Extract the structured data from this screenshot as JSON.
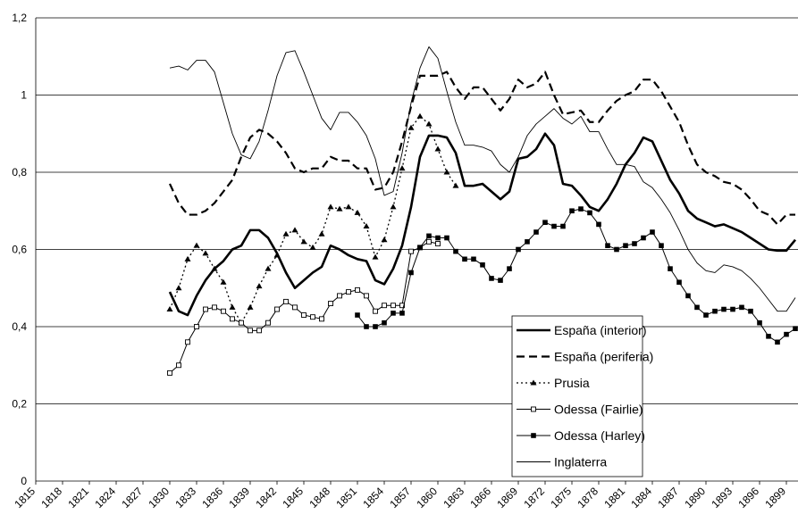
{
  "chart_data": {
    "type": "line",
    "x": [
      1830,
      1831,
      1832,
      1833,
      1834,
      1835,
      1836,
      1837,
      1838,
      1839,
      1840,
      1841,
      1842,
      1843,
      1844,
      1845,
      1846,
      1847,
      1848,
      1849,
      1850,
      1851,
      1852,
      1853,
      1854,
      1855,
      1856,
      1857,
      1858,
      1859,
      1860,
      1861,
      1862,
      1863,
      1864,
      1865,
      1866,
      1867,
      1868,
      1869,
      1870,
      1871,
      1872,
      1873,
      1874,
      1875,
      1876,
      1877,
      1878,
      1879,
      1880,
      1881,
      1882,
      1883,
      1884,
      1885,
      1886,
      1887,
      1888,
      1889,
      1890,
      1891,
      1892,
      1893,
      1894,
      1895,
      1896,
      1897,
      1898,
      1899,
      1900
    ],
    "xlim": [
      1815,
      1900.3
    ],
    "xticks": [
      1815,
      1818,
      1821,
      1824,
      1827,
      1830,
      1833,
      1836,
      1839,
      1842,
      1845,
      1848,
      1851,
      1854,
      1857,
      1860,
      1863,
      1866,
      1869,
      1872,
      1875,
      1878,
      1881,
      1884,
      1887,
      1890,
      1893,
      1896,
      1899
    ],
    "ylim": [
      0,
      1.2
    ],
    "yticks": [
      0,
      {
        "value": 0.2,
        "label": "0,2"
      },
      {
        "value": 0.4,
        "label": "0,4"
      },
      {
        "value": 0.6,
        "label": "0,6"
      },
      {
        "value": 0.8,
        "label": "0,8"
      },
      1,
      {
        "value": 1.2,
        "label": "1,2"
      }
    ],
    "grid": true,
    "legend": "lower right",
    "series": [
      {
        "name": "España (interior)",
        "color": "#000000",
        "style": "solid",
        "width": 2.6,
        "marker": "none",
        "values": [
          0.49,
          0.44,
          0.43,
          0.48,
          0.52,
          0.55,
          0.57,
          0.6,
          0.61,
          0.65,
          0.65,
          0.63,
          0.59,
          0.54,
          0.5,
          0.52,
          0.54,
          0.555,
          0.61,
          0.6,
          0.585,
          0.575,
          0.57,
          0.52,
          0.51,
          0.55,
          0.61,
          0.71,
          0.84,
          0.895,
          0.895,
          0.89,
          0.85,
          0.765,
          0.765,
          0.77,
          0.75,
          0.73,
          0.75,
          0.835,
          0.84,
          0.86,
          0.9,
          0.87,
          0.77,
          0.765,
          0.74,
          0.71,
          0.7,
          0.73,
          0.77,
          0.82,
          0.85,
          0.89,
          0.88,
          0.83,
          0.78,
          0.745,
          0.7,
          0.68,
          0.67,
          0.66,
          0.665,
          0.655,
          0.645,
          0.63,
          0.615,
          0.6,
          0.597,
          0.597,
          0.625
        ]
      },
      {
        "name": "España (periferia)",
        "color": "#000000",
        "style": "dashed",
        "width": 2.2,
        "marker": "none",
        "values": [
          0.77,
          0.72,
          0.69,
          0.69,
          0.7,
          0.72,
          0.75,
          0.78,
          0.84,
          0.89,
          0.91,
          0.9,
          0.88,
          0.85,
          0.81,
          0.8,
          0.81,
          0.81,
          0.84,
          0.83,
          0.83,
          0.81,
          0.81,
          0.755,
          0.76,
          0.8,
          0.88,
          0.97,
          1.05,
          1.05,
          1.05,
          1.06,
          1.02,
          0.99,
          1.02,
          1.02,
          0.99,
          0.96,
          0.99,
          1.04,
          1.02,
          1.03,
          1.06,
          1.0,
          0.95,
          0.955,
          0.96,
          0.93,
          0.93,
          0.96,
          0.985,
          1.0,
          1.01,
          1.04,
          1.04,
          1.01,
          0.97,
          0.93,
          0.87,
          0.82,
          0.8,
          0.79,
          0.775,
          0.77,
          0.755,
          0.73,
          0.7,
          0.69,
          0.665,
          0.69,
          0.69
        ]
      },
      {
        "name": "Prusia",
        "color": "#000000",
        "style": "dotted",
        "width": 1.3,
        "marker": "triangle",
        "values": [
          0.445,
          0.5,
          0.575,
          0.61,
          0.59,
          0.55,
          0.515,
          0.45,
          0.41,
          0.45,
          0.505,
          0.55,
          0.585,
          0.64,
          0.65,
          0.62,
          0.605,
          0.64,
          0.71,
          0.705,
          0.71,
          0.695,
          0.66,
          0.58,
          0.625,
          0.71,
          0.81,
          0.915,
          0.945,
          0.925,
          0.86,
          0.8,
          0.765,
          null,
          null,
          null,
          null,
          null,
          null,
          null,
          null,
          null,
          null,
          null,
          null,
          null,
          null,
          null,
          null,
          null,
          null,
          null,
          null,
          null,
          null,
          null,
          null,
          null,
          null,
          null,
          null,
          null,
          null,
          null,
          null,
          null,
          null,
          null,
          null,
          null,
          null
        ]
      },
      {
        "name": "Odessa (Fairlie)",
        "color": "#000000",
        "style": "solid",
        "width": 1,
        "marker": "square-open",
        "values": [
          0.28,
          0.3,
          0.36,
          0.4,
          0.445,
          0.45,
          0.44,
          0.42,
          0.41,
          0.39,
          0.39,
          0.41,
          0.445,
          0.465,
          0.45,
          0.43,
          0.425,
          0.42,
          0.46,
          0.48,
          0.49,
          0.495,
          0.48,
          0.44,
          0.455,
          0.455,
          0.455,
          0.595,
          0.605,
          0.62,
          0.615,
          null,
          null,
          null,
          null,
          null,
          null,
          null,
          null,
          null,
          null,
          null,
          null,
          null,
          null,
          null,
          null,
          null,
          null,
          null,
          null,
          null,
          null,
          null,
          null,
          null,
          null,
          null,
          null,
          null,
          null,
          null,
          null,
          null,
          null,
          null,
          null,
          null,
          null,
          null,
          null
        ]
      },
      {
        "name": "Odessa (Harley)",
        "color": "#000000",
        "style": "solid",
        "width": 1,
        "marker": "square-filled",
        "values": [
          null,
          null,
          null,
          null,
          null,
          null,
          null,
          null,
          null,
          null,
          null,
          null,
          null,
          null,
          null,
          null,
          null,
          null,
          null,
          null,
          null,
          0.43,
          0.4,
          0.4,
          0.41,
          0.435,
          0.435,
          0.54,
          0.605,
          0.635,
          0.63,
          0.63,
          0.595,
          0.575,
          0.575,
          0.56,
          0.525,
          0.52,
          0.55,
          0.6,
          0.62,
          0.645,
          0.67,
          0.66,
          0.66,
          0.7,
          0.705,
          0.695,
          0.665,
          0.61,
          0.6,
          0.61,
          0.615,
          0.63,
          0.645,
          0.61,
          0.55,
          0.515,
          0.48,
          0.45,
          0.43,
          0.44,
          0.445,
          0.445,
          0.45,
          0.44,
          0.41,
          0.375,
          0.36,
          0.38,
          0.395
        ]
      },
      {
        "name": "Inglaterra",
        "color": "#000000",
        "style": "solid",
        "width": 0.9,
        "marker": "none",
        "values": [
          1.07,
          1.075,
          1.065,
          1.09,
          1.09,
          1.06,
          0.98,
          0.9,
          0.845,
          0.835,
          0.88,
          0.96,
          1.05,
          1.11,
          1.115,
          1.06,
          1.0,
          0.94,
          0.91,
          0.955,
          0.955,
          0.93,
          0.895,
          0.835,
          0.74,
          0.75,
          0.85,
          0.98,
          1.07,
          1.125,
          1.095,
          1.01,
          0.93,
          0.87,
          0.87,
          0.865,
          0.855,
          0.82,
          0.8,
          0.84,
          0.895,
          0.925,
          0.945,
          0.965,
          0.94,
          0.925,
          0.945,
          0.905,
          0.905,
          0.86,
          0.82,
          0.82,
          0.815,
          0.775,
          0.76,
          0.73,
          0.695,
          0.65,
          0.6,
          0.565,
          0.545,
          0.54,
          0.56,
          0.555,
          0.545,
          0.525,
          0.5,
          0.47,
          0.44,
          0.44,
          0.475
        ]
      }
    ]
  }
}
